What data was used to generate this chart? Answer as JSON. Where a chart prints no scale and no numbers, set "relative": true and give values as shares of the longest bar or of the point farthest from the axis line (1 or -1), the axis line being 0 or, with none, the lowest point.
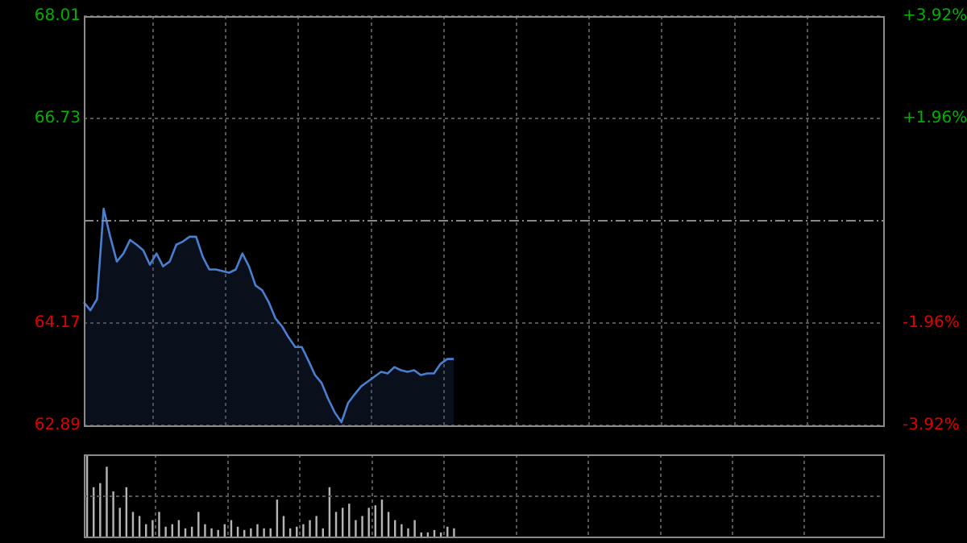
{
  "chart_data": [
    {
      "type": "area",
      "categories": [
        null,
        null,
        null,
        null,
        null,
        null,
        null,
        null,
        null,
        null,
        null,
        null,
        null,
        null,
        null,
        null,
        null,
        null,
        null,
        null,
        null,
        null,
        null,
        null,
        null,
        null,
        null,
        null,
        null,
        null,
        null,
        null,
        null,
        null,
        null,
        null,
        null,
        null,
        null,
        null,
        null,
        null,
        null,
        null,
        null,
        null,
        null,
        null,
        null,
        null,
        null,
        null,
        null,
        null,
        null,
        null,
        null,
        null,
        null,
        null,
        null,
        null,
        null,
        null,
        null,
        null,
        null,
        null,
        null,
        null,
        null,
        null,
        null,
        null,
        null,
        null,
        null,
        null,
        null,
        null,
        null,
        null,
        null,
        null,
        null,
        null,
        null,
        null,
        null,
        null,
        null,
        null,
        null,
        null,
        null,
        null,
        null,
        null,
        null,
        null,
        null,
        null,
        null,
        null,
        null,
        null,
        null,
        null,
        null,
        null,
        null,
        null,
        null,
        null,
        null,
        null,
        null,
        null,
        null,
        null,
        null,
        null
      ],
      "series": [
        {
          "color": "#4a7fd0",
          "values": [
            64.43,
            64.33,
            64.47,
            65.6,
            65.25,
            64.94,
            65.04,
            65.21,
            65.15,
            65.08,
            64.9,
            65.04,
            64.88,
            64.94,
            65.15,
            65.19,
            65.25,
            65.25,
            65.0,
            64.84,
            64.84,
            64.82,
            64.8,
            64.84,
            65.04,
            64.88,
            64.64,
            64.58,
            64.43,
            64.23,
            64.13,
            63.99,
            63.87,
            63.87,
            63.7,
            63.52,
            63.42,
            63.22,
            63.05,
            62.93,
            63.17,
            63.28,
            63.38,
            63.44,
            63.5,
            63.56,
            63.54,
            63.62,
            63.58,
            63.56,
            63.58,
            63.52,
            63.54,
            63.54,
            63.66,
            63.72,
            63.72,
            null,
            null,
            null,
            null,
            null,
            null,
            null,
            null,
            null,
            null,
            null,
            null,
            null,
            null,
            null,
            null,
            null,
            null,
            null,
            null,
            null,
            null,
            null,
            null,
            null,
            null,
            null,
            null,
            null,
            null,
            null,
            null,
            null,
            null,
            null,
            null,
            null,
            null,
            null,
            null,
            null,
            null,
            null,
            null,
            null,
            null,
            null,
            null,
            null,
            null,
            null,
            null,
            null,
            null,
            null,
            null,
            null,
            null,
            null,
            null,
            null,
            null,
            null,
            null,
            null
          ]
        }
      ],
      "ylim": [
        62.89,
        68.01
      ],
      "yticks": [
        62.89,
        64.17,
        66.73,
        68.01
      ],
      "y2lim": [
        -3.92,
        3.92
      ],
      "y2ticks": [
        {
          "value": -3.92,
          "label": "-3.92%"
        },
        {
          "value": -1.96,
          "label": "-1.96%"
        },
        {
          "value": 1.96,
          "label": "+1.96%"
        },
        {
          "value": 3.92,
          "label": "+3.92%"
        }
      ],
      "ref_lines": [
        {
          "axis": "y",
          "value": 65.45
        }
      ],
      "grid": true,
      "tick_labels": "y"
    },
    {
      "type": "bar",
      "relative": true,
      "tick_labels": false,
      "grid": true,
      "categories": [
        null,
        null,
        null,
        null,
        null,
        null,
        null,
        null,
        null,
        null,
        null,
        null,
        null,
        null,
        null,
        null,
        null,
        null,
        null,
        null,
        null,
        null,
        null,
        null,
        null,
        null,
        null,
        null,
        null,
        null,
        null,
        null,
        null,
        null,
        null,
        null,
        null,
        null,
        null,
        null,
        null,
        null,
        null,
        null,
        null,
        null,
        null,
        null,
        null,
        null,
        null,
        null,
        null,
        null,
        null,
        null,
        null,
        null,
        null,
        null,
        null,
        null,
        null,
        null,
        null,
        null,
        null,
        null,
        null,
        null,
        null,
        null,
        null,
        null,
        null,
        null,
        null,
        null,
        null,
        null,
        null,
        null,
        null,
        null,
        null,
        null,
        null,
        null,
        null,
        null,
        null,
        null,
        null,
        null,
        null,
        null,
        null,
        null,
        null,
        null,
        null,
        null,
        null,
        null,
        null,
        null,
        null,
        null,
        null,
        null,
        null,
        null,
        null,
        null,
        null,
        null,
        null,
        null,
        null,
        null,
        null,
        null
      ],
      "color": "#b4b4b4",
      "values": [
        1.0,
        0.6,
        0.65,
        0.85,
        0.55,
        0.35,
        0.6,
        0.3,
        0.25,
        0.15,
        0.2,
        0.3,
        0.12,
        0.15,
        0.2,
        0.1,
        0.12,
        0.3,
        0.15,
        0.1,
        0.08,
        0.15,
        0.2,
        0.12,
        0.08,
        0.1,
        0.15,
        0.1,
        0.1,
        0.45,
        0.25,
        0.1,
        0.12,
        0.15,
        0.2,
        0.25,
        0.1,
        0.6,
        0.3,
        0.35,
        0.4,
        0.2,
        0.25,
        0.35,
        0.38,
        0.45,
        0.3,
        0.2,
        0.15,
        0.1,
        0.2,
        0.05,
        0.05,
        0.08,
        0.05,
        0.12,
        0.1,
        null,
        null,
        null,
        null,
        null,
        null,
        null,
        null,
        null,
        null,
        null,
        null,
        null,
        null,
        null,
        null,
        null,
        null,
        null,
        null,
        null,
        null,
        null,
        null,
        null,
        null,
        null,
        null,
        null,
        null,
        null,
        null,
        null,
        null,
        null,
        null,
        null,
        null,
        null,
        null,
        null,
        null,
        null,
        null,
        null,
        null,
        null,
        null,
        null,
        null,
        null,
        null,
        null,
        null,
        null,
        null,
        null,
        null,
        null,
        null,
        null,
        null,
        null,
        null,
        null
      ]
    }
  ]
}
